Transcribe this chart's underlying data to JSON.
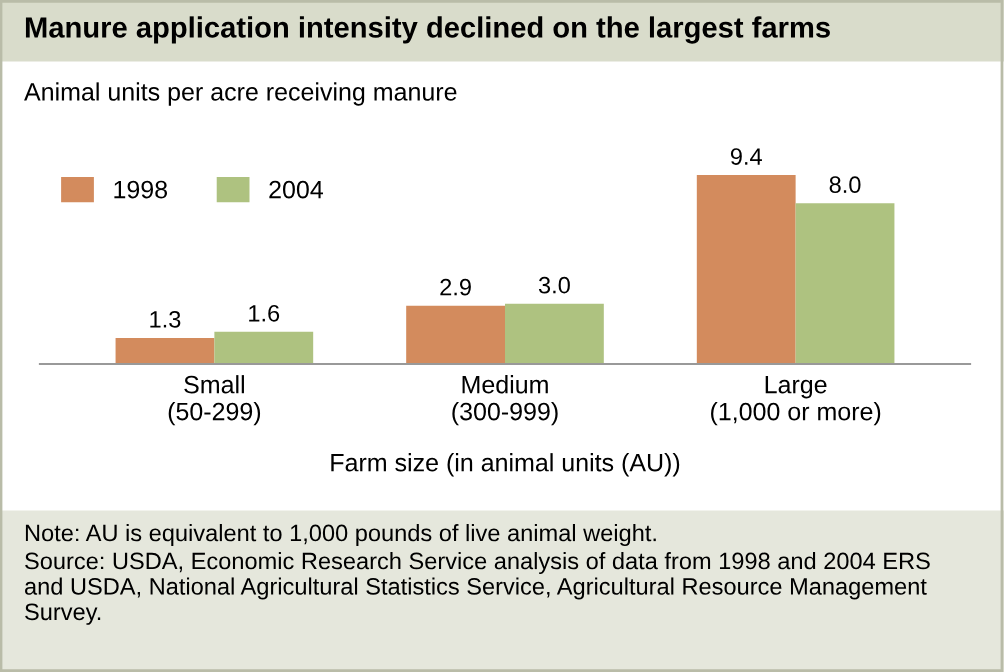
{
  "chart_data": {
    "type": "bar",
    "title": "Manure application intensity declined on the largest farms",
    "ylabel": "Animal units per acre receiving manure",
    "xlabel": "Farm size (in animal units (AU))",
    "categories": [
      "Small\n(50-299)",
      "Medium\n(300-999)",
      "Large\n(1,000 or more)"
    ],
    "series": [
      {
        "name": "1998",
        "color": "#d38b5d",
        "values": [
          1.3,
          2.9,
          9.4
        ],
        "value_labels": [
          "1.3",
          "2.9",
          "9.4"
        ]
      },
      {
        "name": "2004",
        "color": "#aec280",
        "values": [
          1.6,
          3.0,
          8.0
        ],
        "value_labels": [
          "1.6",
          "3.0",
          "8.0"
        ]
      }
    ],
    "legend": "top left",
    "grid": false,
    "annotations": [
      "Note: AU is equivalent to 1,000 pounds of live animal weight.",
      "Source: USDA, Economic Research Service analysis of data from 1998 and 2004 ERS and USDA, National Agricultural Statistics Service, Agricultural Resource Management Survey."
    ]
  }
}
